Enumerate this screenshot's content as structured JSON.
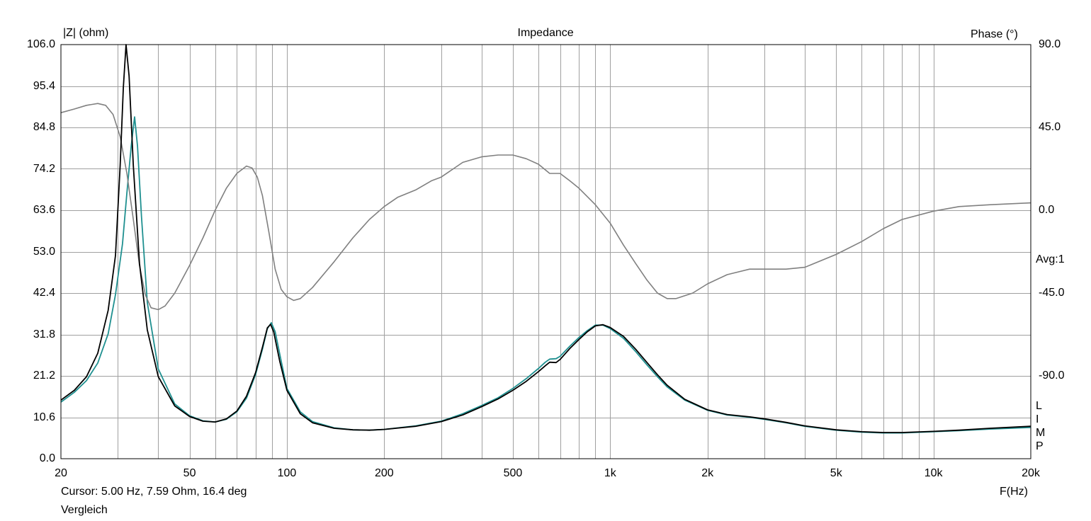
{
  "chart_data": {
    "type": "line",
    "title": "Impedance",
    "left_axis_label": "|Z| (ohm)",
    "right_axis_label": "Phase (°)",
    "xlabel": "F(Hz)",
    "x_scale": "log",
    "xlim": [
      20,
      20000
    ],
    "ylim": [
      0.0,
      106.0
    ],
    "y2lim": [
      -135.0,
      90.0
    ],
    "y_ticks": [
      "106.0",
      "95.4",
      "84.8",
      "74.2",
      "63.6",
      "53.0",
      "42.4",
      "31.8",
      "21.2",
      "10.6",
      "0.0"
    ],
    "y2_ticks": [
      "90.0",
      "45.0",
      "0.0",
      "-45.0",
      "-90.0"
    ],
    "x_ticks": [
      {
        "v": 20,
        "label": "20"
      },
      {
        "v": 50,
        "label": "50"
      },
      {
        "v": 100,
        "label": "100"
      },
      {
        "v": 200,
        "label": "200"
      },
      {
        "v": 500,
        "label": "500"
      },
      {
        "v": 1000,
        "label": "1k"
      },
      {
        "v": 2000,
        "label": "2k"
      },
      {
        "v": 5000,
        "label": "5k"
      },
      {
        "v": 10000,
        "label": "10k"
      },
      {
        "v": 20000,
        "label": "20k"
      }
    ],
    "grid": true,
    "avg_label": "Avg:1",
    "side_letters": [
      "L",
      "I",
      "M",
      "P"
    ],
    "series": [
      {
        "axis": "left",
        "color": "#000000",
        "points": [
          [
            20,
            15.0
          ],
          [
            22,
            17.5
          ],
          [
            24,
            21
          ],
          [
            26,
            27
          ],
          [
            28,
            38
          ],
          [
            29.5,
            52
          ],
          [
            30.5,
            75
          ],
          [
            31.2,
            95
          ],
          [
            31.8,
            106
          ],
          [
            32.5,
            98
          ],
          [
            33.5,
            75
          ],
          [
            35,
            50
          ],
          [
            37,
            33
          ],
          [
            40,
            21
          ],
          [
            45,
            13.5
          ],
          [
            50,
            10.8
          ],
          [
            55,
            9.6
          ],
          [
            60,
            9.4
          ],
          [
            65,
            10.2
          ],
          [
            70,
            12.2
          ],
          [
            75,
            16
          ],
          [
            80,
            22
          ],
          [
            84,
            28.5
          ],
          [
            87,
            33.5
          ],
          [
            89,
            34.4
          ],
          [
            91,
            32.5
          ],
          [
            95,
            25
          ],
          [
            100,
            17.5
          ],
          [
            110,
            11.5
          ],
          [
            120,
            9.2
          ],
          [
            140,
            7.8
          ],
          [
            160,
            7.4
          ],
          [
            180,
            7.3
          ],
          [
            200,
            7.5
          ],
          [
            250,
            8.3
          ],
          [
            300,
            9.5
          ],
          [
            350,
            11.2
          ],
          [
            400,
            13.3
          ],
          [
            450,
            15.3
          ],
          [
            500,
            17.5
          ],
          [
            550,
            19.8
          ],
          [
            600,
            22.3
          ],
          [
            630,
            23.8
          ],
          [
            650,
            24.7
          ],
          [
            680,
            24.6
          ],
          [
            700,
            25.4
          ],
          [
            750,
            28.2
          ],
          [
            800,
            30.5
          ],
          [
            850,
            32.5
          ],
          [
            900,
            34.0
          ],
          [
            950,
            34.3
          ],
          [
            1000,
            33.6
          ],
          [
            1100,
            31.3
          ],
          [
            1200,
            28.0
          ],
          [
            1300,
            24.6
          ],
          [
            1400,
            21.5
          ],
          [
            1500,
            18.8
          ],
          [
            1700,
            15.2
          ],
          [
            2000,
            12.5
          ],
          [
            2300,
            11.3
          ],
          [
            2700,
            10.7
          ],
          [
            3000,
            10.2
          ],
          [
            3500,
            9.3
          ],
          [
            4000,
            8.4
          ],
          [
            5000,
            7.4
          ],
          [
            6000,
            6.9
          ],
          [
            7000,
            6.7
          ],
          [
            8000,
            6.7
          ],
          [
            10000,
            7.0
          ],
          [
            12000,
            7.3
          ],
          [
            15000,
            7.8
          ],
          [
            20000,
            8.3
          ]
        ]
      },
      {
        "axis": "left",
        "color": "#1f9090",
        "points": [
          [
            20,
            14.5
          ],
          [
            22,
            17
          ],
          [
            24,
            20
          ],
          [
            26,
            24.5
          ],
          [
            28,
            32
          ],
          [
            29.5,
            42
          ],
          [
            31,
            55
          ],
          [
            32,
            68
          ],
          [
            33,
            80
          ],
          [
            33.8,
            87.5
          ],
          [
            34.5,
            80
          ],
          [
            35.5,
            62
          ],
          [
            37,
            40
          ],
          [
            40,
            23
          ],
          [
            45,
            14
          ],
          [
            50,
            11
          ],
          [
            55,
            9.7
          ],
          [
            60,
            9.4
          ],
          [
            65,
            10.1
          ],
          [
            70,
            12
          ],
          [
            75,
            15.5
          ],
          [
            80,
            21.5
          ],
          [
            84,
            28
          ],
          [
            87,
            33.3
          ],
          [
            89.5,
            34.8
          ],
          [
            92,
            32.5
          ],
          [
            96,
            25
          ],
          [
            100,
            18
          ],
          [
            110,
            12
          ],
          [
            120,
            9.5
          ],
          [
            140,
            7.9
          ],
          [
            160,
            7.4
          ],
          [
            180,
            7.3
          ],
          [
            200,
            7.5
          ],
          [
            250,
            8.4
          ],
          [
            300,
            9.6
          ],
          [
            350,
            11.5
          ],
          [
            400,
            13.6
          ],
          [
            450,
            15.6
          ],
          [
            500,
            18.0
          ],
          [
            550,
            20.5
          ],
          [
            600,
            23.1
          ],
          [
            630,
            24.7
          ],
          [
            650,
            25.5
          ],
          [
            680,
            25.6
          ],
          [
            700,
            26.2
          ],
          [
            750,
            28.8
          ],
          [
            800,
            31.0
          ],
          [
            850,
            32.8
          ],
          [
            900,
            34.2
          ],
          [
            950,
            34.2
          ],
          [
            1000,
            33.3
          ],
          [
            1100,
            30.8
          ],
          [
            1200,
            27.4
          ],
          [
            1300,
            24.0
          ],
          [
            1400,
            21.0
          ],
          [
            1500,
            18.4
          ],
          [
            1700,
            15.0
          ],
          [
            2000,
            12.4
          ],
          [
            2300,
            11.2
          ],
          [
            2700,
            10.6
          ],
          [
            3000,
            10.1
          ],
          [
            3500,
            9.2
          ],
          [
            4000,
            8.3
          ],
          [
            5000,
            7.3
          ],
          [
            6000,
            6.8
          ],
          [
            7000,
            6.6
          ],
          [
            8000,
            6.6
          ],
          [
            10000,
            6.9
          ],
          [
            12000,
            7.2
          ],
          [
            15000,
            7.6
          ],
          [
            20000,
            8.0
          ]
        ]
      },
      {
        "axis": "right",
        "color": "#808080",
        "points": [
          [
            20,
            53
          ],
          [
            22,
            55
          ],
          [
            24,
            57
          ],
          [
            26,
            58
          ],
          [
            27.5,
            57
          ],
          [
            29,
            52
          ],
          [
            30.5,
            40
          ],
          [
            32,
            20
          ],
          [
            33.5,
            -5
          ],
          [
            35,
            -30
          ],
          [
            36.5,
            -46
          ],
          [
            38,
            -53
          ],
          [
            40,
            -54
          ],
          [
            42,
            -52
          ],
          [
            45,
            -45
          ],
          [
            50,
            -30
          ],
          [
            55,
            -15
          ],
          [
            60,
            0
          ],
          [
            65,
            12
          ],
          [
            70,
            20
          ],
          [
            75,
            24
          ],
          [
            78,
            23
          ],
          [
            81,
            18
          ],
          [
            84,
            8
          ],
          [
            88,
            -12
          ],
          [
            92,
            -32
          ],
          [
            96,
            -43
          ],
          [
            100,
            -47
          ],
          [
            105,
            -49
          ],
          [
            110,
            -48
          ],
          [
            120,
            -42
          ],
          [
            140,
            -28
          ],
          [
            160,
            -15
          ],
          [
            180,
            -5
          ],
          [
            200,
            2
          ],
          [
            220,
            7
          ],
          [
            250,
            11
          ],
          [
            280,
            16
          ],
          [
            300,
            18
          ],
          [
            350,
            26
          ],
          [
            400,
            29
          ],
          [
            450,
            30
          ],
          [
            500,
            30
          ],
          [
            550,
            28
          ],
          [
            600,
            25
          ],
          [
            650,
            20
          ],
          [
            700,
            20
          ],
          [
            750,
            16
          ],
          [
            800,
            12
          ],
          [
            900,
            3
          ],
          [
            1000,
            -7
          ],
          [
            1100,
            -19
          ],
          [
            1200,
            -29
          ],
          [
            1300,
            -38
          ],
          [
            1400,
            -45
          ],
          [
            1500,
            -48
          ],
          [
            1600,
            -48
          ],
          [
            1800,
            -45
          ],
          [
            2000,
            -40
          ],
          [
            2300,
            -35
          ],
          [
            2700,
            -32
          ],
          [
            3000,
            -32
          ],
          [
            3500,
            -32
          ],
          [
            4000,
            -31
          ],
          [
            5000,
            -24
          ],
          [
            6000,
            -17
          ],
          [
            7000,
            -10
          ],
          [
            8000,
            -5
          ],
          [
            10000,
            -0.5
          ],
          [
            12000,
            2
          ],
          [
            15000,
            3
          ],
          [
            20000,
            4
          ]
        ]
      }
    ]
  },
  "footer": {
    "cursor": "Cursor: 5.00 Hz, 7.59 Ohm, 16.4 deg",
    "name": "Vergleich"
  }
}
